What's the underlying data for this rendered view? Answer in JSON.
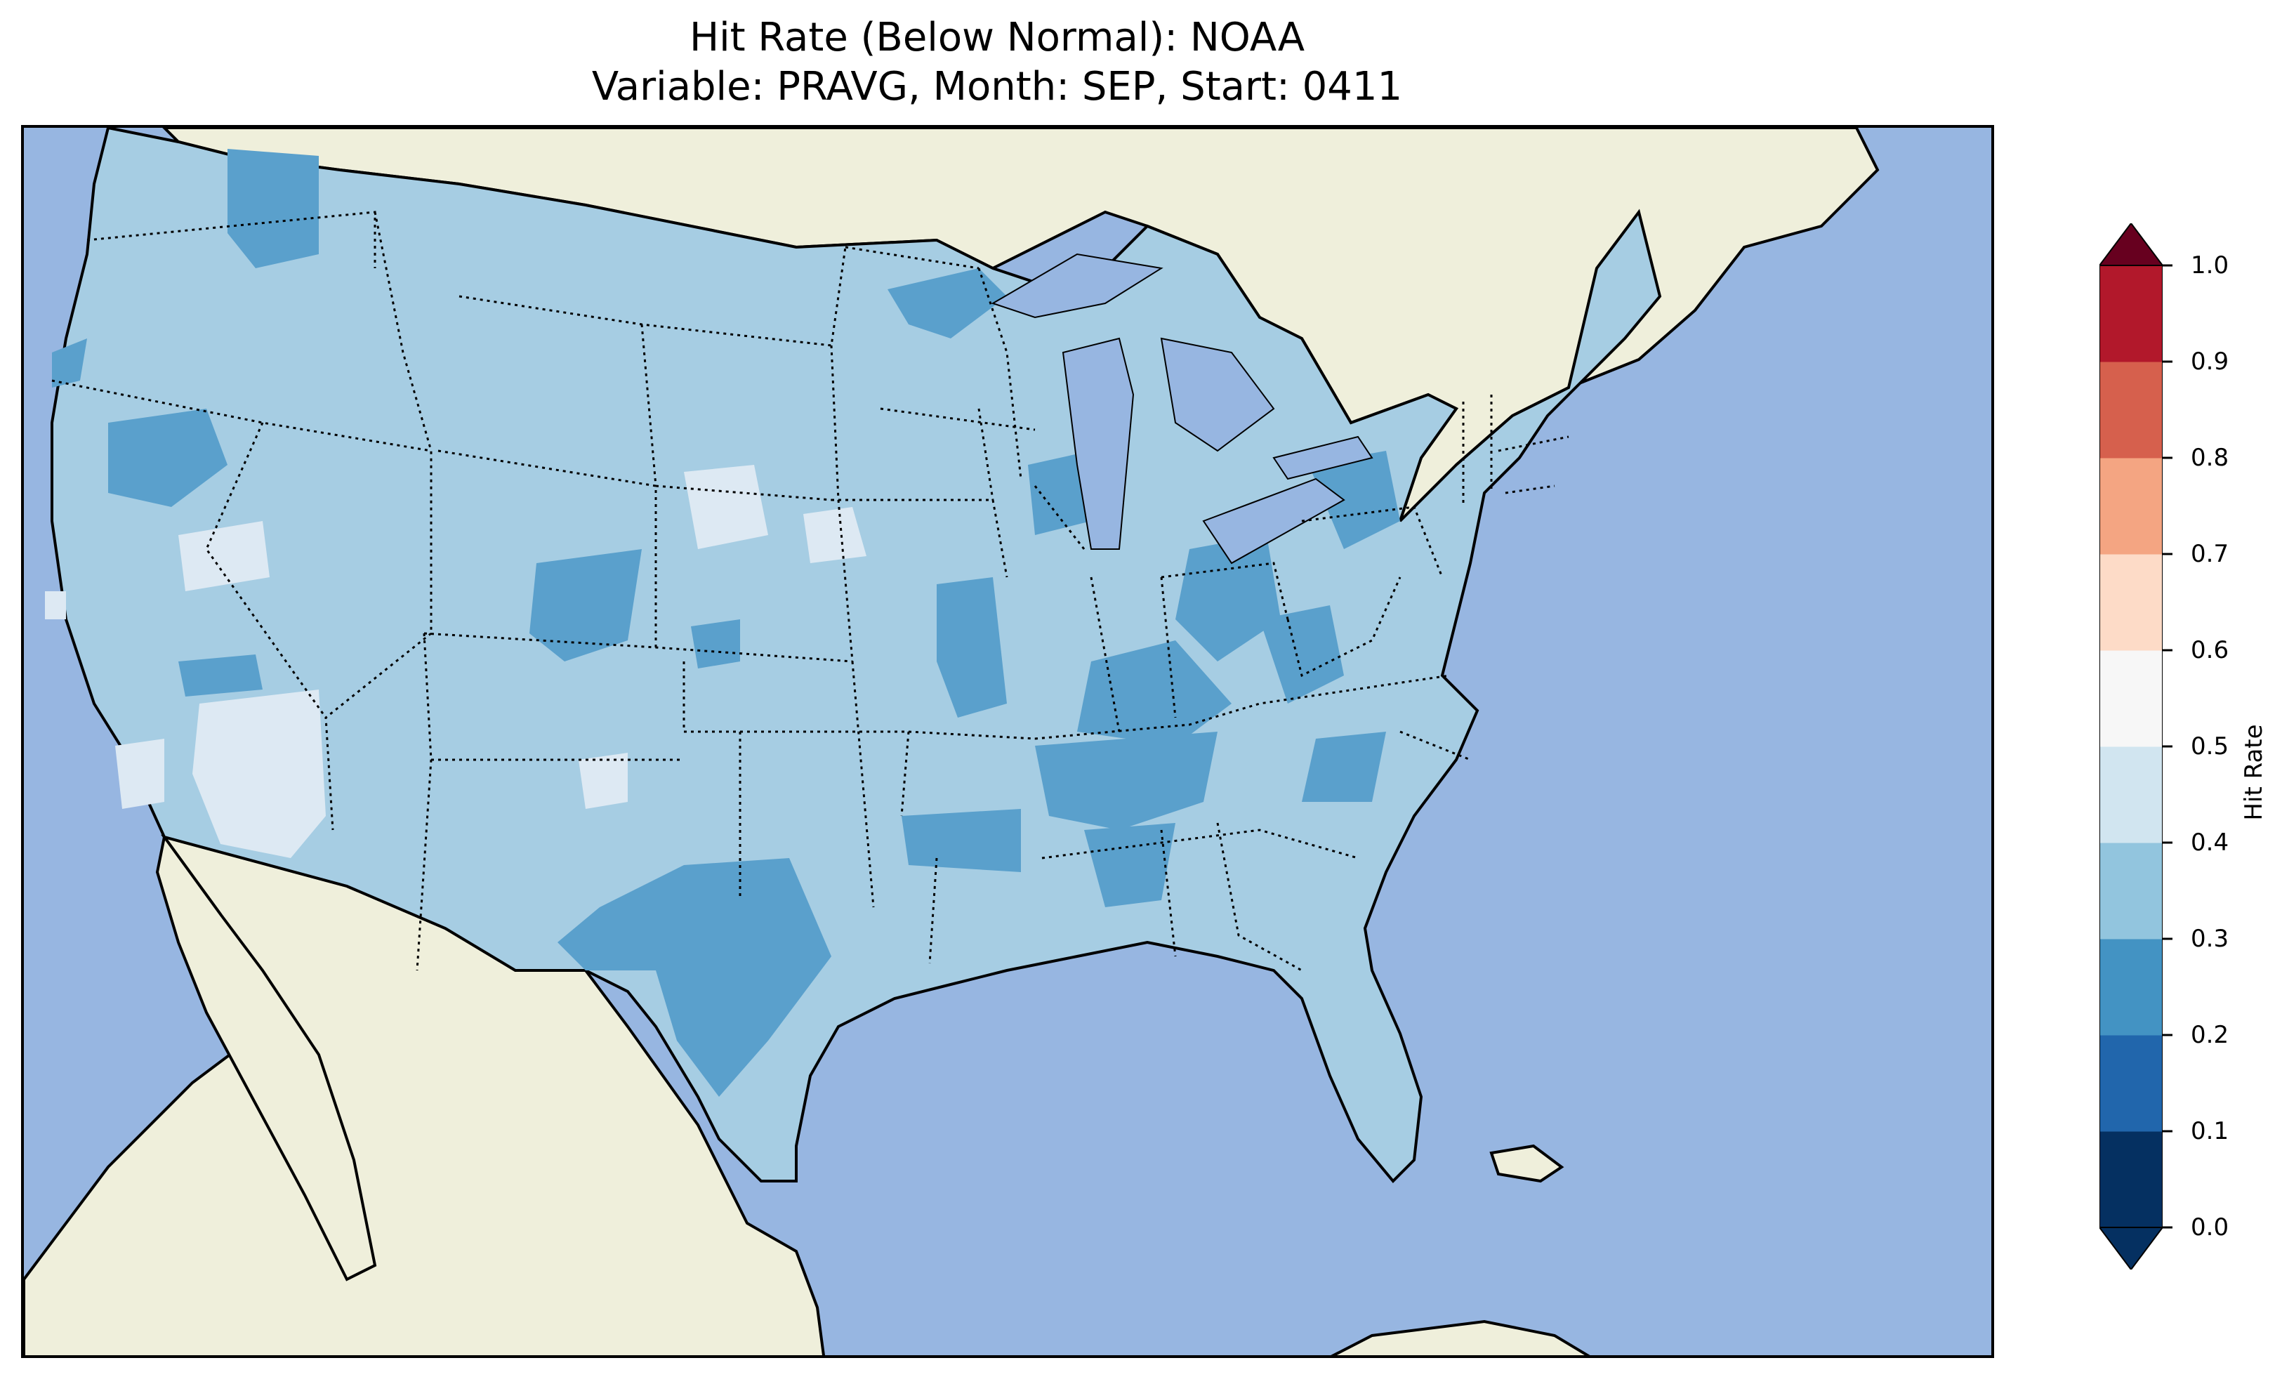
{
  "title_line1": "Hit Rate (Below Normal): NOAA",
  "title_line2": "Variable: PRAVG, Month: SEP, Start: 0411",
  "colorbar": {
    "label": "Hit Rate",
    "ticks": [
      "0.0",
      "0.1",
      "0.2",
      "0.3",
      "0.4",
      "0.5",
      "0.6",
      "0.7",
      "0.8",
      "0.9",
      "1.0"
    ],
    "colors": [
      "#053061",
      "#2166ac",
      "#4393c3",
      "#92c5de",
      "#d1e5f0",
      "#f7f7f7",
      "#fddbc7",
      "#f4a582",
      "#d6604d",
      "#b2182b",
      "#67001f"
    ],
    "extend": "both"
  },
  "map": {
    "ocean_color": "#97b6e1",
    "land_color": "#efefdb",
    "region": "Contiguous United States"
  }
}
